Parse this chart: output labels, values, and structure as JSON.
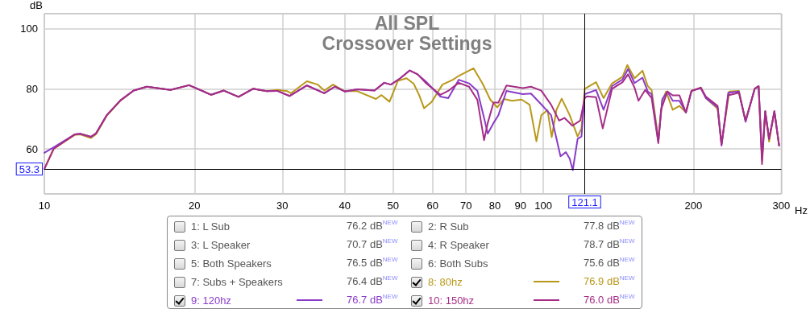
{
  "chart_data": {
    "type": "line",
    "title": "All SPL",
    "subtitle": "Crossover Settings",
    "xlabel": "Hz",
    "ylabel": "dB",
    "log": "x",
    "xlim": [
      10,
      300
    ],
    "xticks": [
      10,
      20,
      30,
      40,
      50,
      60,
      70,
      80,
      90,
      100,
      200,
      300
    ],
    "ylim": [
      45,
      105
    ],
    "yticks": [
      60,
      80,
      100
    ],
    "grid": true,
    "legend": "bottom",
    "line_style": "solid",
    "ref_lines": [
      {
        "axis": "x",
        "value": 121.1,
        "label": "121.1"
      },
      {
        "axis": "y",
        "value": 53.3,
        "label": "53.3"
      }
    ],
    "series": [
      {
        "name": "1: L Sub"
      },
      {
        "name": "2: R Sub"
      },
      {
        "name": "3: L Speaker"
      },
      {
        "name": "4: R Speaker"
      },
      {
        "name": "5: Both Speakers"
      },
      {
        "name": "6: Both Subs"
      },
      {
        "name": "7: Subs + Speakers"
      },
      {
        "name": "8: 80hz",
        "color": "#b8981a",
        "x": [
          10,
          10.44,
          11.5,
          11.8,
          12.4,
          12.7,
          13.35,
          14.2,
          15.1,
          16.05,
          17.9,
          19.5,
          21.6,
          22.9,
          24.5,
          26.2,
          27.9,
          29.3,
          30.7,
          31.2,
          33.6,
          35.3,
          36.4,
          37.9,
          40,
          42.4,
          46.2,
          47.4,
          49.2,
          51.1,
          53.2,
          55,
          56.4,
          57.7,
          59.8,
          62.8,
          65.9,
          67.7,
          72.5,
          75.6,
          78.3,
          80.9,
          83.4,
          86.6,
          90.5,
          93.9,
          96.9,
          99.1,
          102,
          104,
          106.3,
          108.9,
          113,
          117.2,
          119.3,
          121.1,
          127.6,
          132.1,
          137.4,
          144.2,
          147.4,
          152.4,
          158.1,
          162,
          164.9,
          170.1,
          173.2,
          176.3,
          181.8,
          187.5,
          193.2,
          198.2,
          206.9,
          211.8,
          223.6,
          227.7,
          236,
          246.7,
          254.4,
          265.4,
          270.2,
          274.5,
          278.6,
          283.6,
          290.6,
          297
        ],
        "values": [
          53.3,
          60,
          64.6,
          64.8,
          63.6,
          64.9,
          71.1,
          76,
          79.4,
          80.7,
          79.6,
          81.2,
          78,
          79.4,
          77.3,
          80,
          79.2,
          79.6,
          79.2,
          78.5,
          82.5,
          81.4,
          79.4,
          81.4,
          79.2,
          79.2,
          76.6,
          77.9,
          75.7,
          82.6,
          83.5,
          81.7,
          77.9,
          73.5,
          75.7,
          81.4,
          83,
          84.3,
          86.8,
          81.7,
          76.4,
          73.8,
          76.6,
          76,
          76.4,
          74.7,
          62.5,
          71.2,
          72.9,
          63.9,
          73,
          76.7,
          71.2,
          64.1,
          66.8,
          80,
          82.2,
          76.9,
          81.8,
          84,
          87.9,
          83.5,
          86,
          80.9,
          79.6,
          63.3,
          76,
          79.1,
          73,
          74.3,
          72.1,
          79.3,
          80.4,
          76.9,
          73.4,
          61.5,
          79.1,
          79.3,
          69.4,
          80,
          80.9,
          56.2,
          72.5,
          62.4,
          72.5,
          61.1
        ]
      },
      {
        "name": "9: 120hz",
        "color": "#8a3cc8",
        "x": [
          10,
          10.44,
          11.5,
          11.8,
          12.4,
          12.7,
          13.35,
          14.2,
          15.1,
          16.05,
          17.9,
          19.5,
          21.6,
          22.9,
          24.5,
          26.2,
          27.9,
          29.3,
          31,
          33.6,
          36.4,
          38.2,
          40,
          42.4,
          45.9,
          48,
          49.5,
          51.7,
          54,
          56,
          58.1,
          62.2,
          64.5,
          67.7,
          71,
          73.8,
          76.1,
          77.4,
          79.5,
          81.3,
          84.4,
          91,
          94.5,
          99.1,
          103.7,
          108.3,
          111,
          113,
          114.6,
          117.2,
          119.3,
          121.1,
          127.6,
          132.1,
          137.4,
          144.2,
          147.9,
          152.4,
          158.1,
          162,
          164.9,
          170.1,
          173.2,
          177.4,
          181.8,
          187.5,
          193.2,
          198.2,
          206.9,
          211.8,
          223.6,
          227.7,
          234.9,
          246.7,
          254.4,
          265.4,
          270.2,
          274.5,
          278.6,
          283.6,
          290.6,
          297
        ],
        "values": [
          58.7,
          60.5,
          64.8,
          65,
          64,
          65.2,
          71.3,
          76.1,
          79.4,
          80.7,
          79.6,
          81.2,
          78,
          79.4,
          77.3,
          80,
          79.2,
          79.3,
          77.6,
          81.1,
          78.5,
          80.7,
          79.1,
          79.8,
          79.4,
          82,
          81.4,
          83.5,
          86.1,
          84.8,
          82.5,
          77.4,
          76.9,
          83,
          81.8,
          79.3,
          70.3,
          65.1,
          68.6,
          71.2,
          79.3,
          78.2,
          78.4,
          74.8,
          71.2,
          57.5,
          58.9,
          56.7,
          52.9,
          63.3,
          64.1,
          78.2,
          79.6,
          73,
          80.9,
          83.1,
          86.6,
          81.9,
          83.7,
          79.1,
          78.2,
          62.4,
          76.5,
          79.1,
          76,
          76,
          72.1,
          79.3,
          80.2,
          76.9,
          73.8,
          61.1,
          78.7,
          79.1,
          69,
          80,
          80.9,
          57.1,
          72.5,
          63.3,
          72.5,
          61.1
        ]
      },
      {
        "name": "10: 150hz",
        "color": "#a62d86",
        "x": [
          10,
          10.44,
          11.5,
          11.8,
          12.4,
          12.7,
          13.35,
          14.2,
          15.1,
          16.05,
          17.9,
          19.5,
          21.6,
          22.9,
          24.5,
          26.2,
          27.9,
          29.3,
          31,
          33.6,
          36.4,
          38.2,
          40,
          42.4,
          45.9,
          48,
          49.5,
          51.7,
          54,
          56,
          58.1,
          62.2,
          64.5,
          67.7,
          71,
          73.8,
          76.1,
          77.4,
          79.5,
          81.3,
          84.4,
          91,
          94.5,
          99.1,
          103.7,
          107.6,
          110.3,
          114.4,
          118.6,
          121.1,
          122.3,
          127.6,
          131.6,
          137.4,
          144.2,
          147.9,
          152.4,
          155.2,
          160.1,
          164.9,
          170.1,
          172.2,
          177.4,
          181.8,
          187.5,
          193.2,
          198.2,
          206.9,
          211.8,
          223.6,
          227.7,
          234.9,
          246.7,
          254.4,
          265.4,
          270.2,
          274.5,
          278.6,
          283.6,
          290.6,
          297
        ],
        "values": [
          53.3,
          60,
          64.8,
          65,
          64,
          65.2,
          71.3,
          76.1,
          79.4,
          80.7,
          79.6,
          81.2,
          78,
          79.4,
          77.3,
          80,
          79.2,
          79.3,
          77.6,
          81.1,
          78.5,
          80.7,
          79.1,
          79.8,
          79.4,
          82,
          81.4,
          83.5,
          86.1,
          84.8,
          82,
          78,
          79.3,
          82,
          80.7,
          76.3,
          62.9,
          68.6,
          75.4,
          75.4,
          81.1,
          80.2,
          80.7,
          79.4,
          74.7,
          69.4,
          70.3,
          67.7,
          69.4,
          76.9,
          77.5,
          77.2,
          66.8,
          80,
          82.2,
          84.8,
          80.4,
          76,
          79.6,
          76.9,
          61.9,
          73,
          79.1,
          77.8,
          77.8,
          72.1,
          79.3,
          80.4,
          77.4,
          74.3,
          61.5,
          77.8,
          78.7,
          69.4,
          80,
          80.9,
          54.9,
          72.5,
          63.3,
          72.5,
          61.1
        ]
      }
    ],
    "annotations": [
      "76.2 dB$^{NEW}$",
      "77.8 dB$^{NEW}$",
      "70.7 dB$^{NEW}$",
      "78.7 dB$^{NEW}$",
      "76.5 dB$^{NEW}$",
      "75.6 dB$^{NEW}$",
      "76.4 dB$^{NEW}$",
      "76.9 dB$^{NEW}$",
      "76.7 dB$^{NEW}$",
      "76.0 dB$^{NEW}$"
    ]
  }
}
